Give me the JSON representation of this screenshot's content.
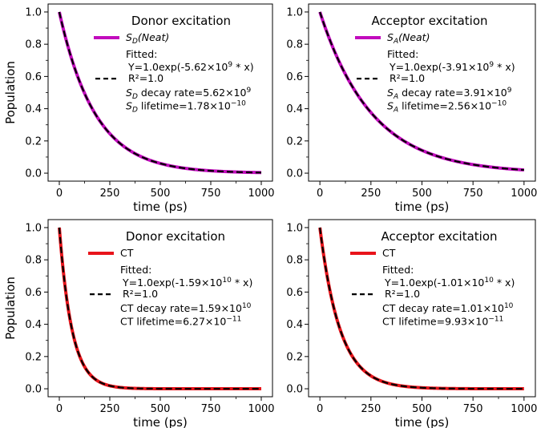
{
  "chart_data": [
    {
      "type": "line",
      "title": "Donor excitation",
      "xlabel": "time (ps)",
      "ylabel": "Population",
      "xlim": [
        0,
        1000
      ],
      "ylim": [
        0,
        1.0
      ],
      "xticks": [
        "0",
        "250",
        "500",
        "750",
        "1000"
      ],
      "yticks": [
        "0.0",
        "0.2",
        "0.4",
        "0.6",
        "0.8",
        "1.0"
      ],
      "rate_per_s": 5620000000.0,
      "series": [
        {
          "name": "S_D(Neat)",
          "color": "#c20bbd",
          "style": "solid",
          "A": 1.0,
          "k_per_ps": 0.00562
        },
        {
          "name": "Fitted",
          "color": "#000000",
          "style": "dashed",
          "A": 1.0,
          "k_per_ps": 0.00562
        }
      ],
      "legend": {
        "series_label": {
          "main": "S",
          "sub": "D",
          "suffix": "(Neat)"
        },
        "fitted": "Fitted:",
        "eq": {
          "pre": "Y=1.0exp(-5.62×10",
          "exp": "9",
          "post": " * x)"
        },
        "r2": "R²=1.0",
        "rate": {
          "main": "S",
          "sub": "D",
          "text": " decay rate=5.62×10",
          "exp": "9"
        },
        "life": {
          "main": "S",
          "sub": "D",
          "text": " lifetime=1.78×10",
          "exp": "−10"
        }
      }
    },
    {
      "type": "line",
      "title": "Acceptor excitation",
      "xlabel": "time (ps)",
      "ylabel": "",
      "xlim": [
        0,
        1000
      ],
      "ylim": [
        0,
        1.0
      ],
      "xticks": [
        "0",
        "250",
        "500",
        "750",
        "1000"
      ],
      "yticks": [
        "0.0",
        "0.2",
        "0.4",
        "0.6",
        "0.8",
        "1.0"
      ],
      "rate_per_s": 3910000000.0,
      "series": [
        {
          "name": "S_A(Neat)",
          "color": "#c20bbd",
          "style": "solid",
          "A": 1.0,
          "k_per_ps": 0.00391
        },
        {
          "name": "Fitted",
          "color": "#000000",
          "style": "dashed",
          "A": 1.0,
          "k_per_ps": 0.00391
        }
      ],
      "legend": {
        "series_label": {
          "main": "S",
          "sub": "A",
          "suffix": "(Neat)"
        },
        "fitted": "Fitted:",
        "eq": {
          "pre": "Y=1.0exp(-3.91×10",
          "exp": "9",
          "post": " * x)"
        },
        "r2": "R²=1.0",
        "rate": {
          "main": "S",
          "sub": "A",
          "text": " decay rate=3.91×10",
          "exp": "9"
        },
        "life": {
          "main": "S",
          "sub": "A",
          "text": " lifetime=2.56×10",
          "exp": "−10"
        }
      }
    },
    {
      "type": "line",
      "title": "Donor excitation",
      "xlabel": "time (ps)",
      "ylabel": "Population",
      "xlim": [
        0,
        1000
      ],
      "ylim": [
        0,
        1.0
      ],
      "xticks": [
        "0",
        "250",
        "500",
        "750",
        "1000"
      ],
      "yticks": [
        "0.0",
        "0.2",
        "0.4",
        "0.6",
        "0.8",
        "1.0"
      ],
      "rate_per_s": 15900000000.0,
      "series": [
        {
          "name": "CT",
          "color": "#e8141b",
          "style": "solid",
          "A": 1.0,
          "k_per_ps": 0.0159
        },
        {
          "name": "Fitted",
          "color": "#000000",
          "style": "dashed",
          "A": 1.0,
          "k_per_ps": 0.0159
        }
      ],
      "legend": {
        "series_label": {
          "main": "CT",
          "sub": "",
          "suffix": ""
        },
        "fitted": "Fitted:",
        "eq": {
          "pre": "Y=1.0exp(-1.59×10",
          "exp": "10",
          "post": " * x)"
        },
        "r2": "R²=1.0",
        "rate": {
          "main": "CT",
          "sub": "",
          "text": " decay rate=1.59×10",
          "exp": "10"
        },
        "life": {
          "main": "CT",
          "sub": "",
          "text": " lifetime=6.27×10",
          "exp": "−11"
        }
      }
    },
    {
      "type": "line",
      "title": "Acceptor excitation",
      "xlabel": "time (ps)",
      "ylabel": "",
      "xlim": [
        0,
        1000
      ],
      "ylim": [
        0,
        1.0
      ],
      "xticks": [
        "0",
        "250",
        "500",
        "750",
        "1000"
      ],
      "yticks": [
        "0.0",
        "0.2",
        "0.4",
        "0.6",
        "0.8",
        "1.0"
      ],
      "rate_per_s": 10100000000.0,
      "series": [
        {
          "name": "CT",
          "color": "#e8141b",
          "style": "solid",
          "A": 1.0,
          "k_per_ps": 0.0101
        },
        {
          "name": "Fitted",
          "color": "#000000",
          "style": "dashed",
          "A": 1.0,
          "k_per_ps": 0.0101
        }
      ],
      "legend": {
        "series_label": {
          "main": "CT",
          "sub": "",
          "suffix": ""
        },
        "fitted": "Fitted:",
        "eq": {
          "pre": "Y=1.0exp(-1.01×10",
          "exp": "10",
          "post": " * x)"
        },
        "r2": "R²=1.0",
        "rate": {
          "main": "CT",
          "sub": "",
          "text": " decay rate=1.01×10",
          "exp": "10"
        },
        "life": {
          "main": "CT",
          "sub": "",
          "text": " lifetime=9.93×10",
          "exp": "−11"
        }
      }
    }
  ]
}
